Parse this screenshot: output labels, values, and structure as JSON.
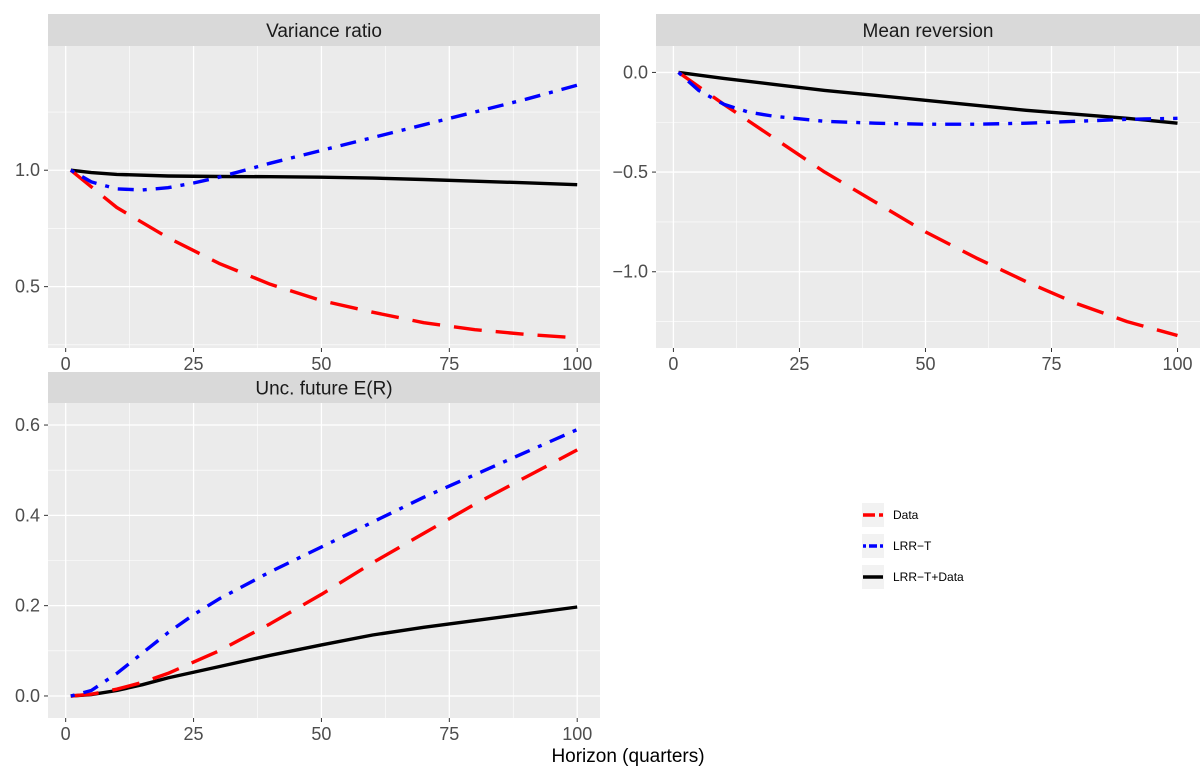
{
  "figure": {
    "xlabel": "Horizon (quarters)"
  },
  "legend": {
    "position": "right",
    "entries": [
      {
        "label": "Data",
        "color": "#ff0000",
        "linetype": "longdash"
      },
      {
        "label": "LRR−T",
        "color": "#0000ff",
        "linetype": "dotdash"
      },
      {
        "label": "LRR−T+Data",
        "color": "#000000",
        "linetype": "solid"
      }
    ]
  },
  "chart_data": [
    {
      "type": "line",
      "title": "Variance ratio",
      "xlim": [
        1,
        100
      ],
      "ylim": [
        0.29,
        1.48
      ],
      "x_ticks": [
        0,
        25,
        50,
        75,
        100
      ],
      "x_tick_labels": [
        "0",
        "25",
        "50",
        "75",
        "100"
      ],
      "y_ticks": [
        0.5,
        1.0
      ],
      "y_tick_labels": [
        "0.5",
        "1.0"
      ],
      "grid": true,
      "series": [
        {
          "name": "Data",
          "color": "#ff0000",
          "linetype": "longdash",
          "x": [
            1,
            10,
            20,
            30,
            40,
            50,
            60,
            70,
            80,
            90,
            100
          ],
          "y": [
            1.0,
            0.84,
            0.71,
            0.6,
            0.51,
            0.44,
            0.39,
            0.345,
            0.315,
            0.295,
            0.28
          ]
        },
        {
          "name": "LRR−T",
          "color": "#0000ff",
          "linetype": "dotdash",
          "x": [
            1,
            5,
            10,
            15,
            20,
            25,
            30,
            40,
            50,
            60,
            70,
            80,
            90,
            100
          ],
          "y": [
            1.0,
            0.95,
            0.92,
            0.915,
            0.925,
            0.945,
            0.97,
            1.03,
            1.085,
            1.14,
            1.195,
            1.25,
            1.305,
            1.365
          ]
        },
        {
          "name": "LRR−T+Data",
          "color": "#000000",
          "linetype": "solid",
          "x": [
            1,
            5,
            10,
            20,
            30,
            40,
            50,
            60,
            70,
            80,
            90,
            100
          ],
          "y": [
            1.0,
            0.99,
            0.982,
            0.975,
            0.973,
            0.972,
            0.97,
            0.966,
            0.96,
            0.953,
            0.946,
            0.938
          ]
        }
      ]
    },
    {
      "type": "line",
      "title": "Mean reversion",
      "xlim": [
        1,
        100
      ],
      "ylim": [
        -1.32,
        0.07
      ],
      "x_ticks": [
        0,
        25,
        50,
        75,
        100
      ],
      "x_tick_labels": [
        "0",
        "25",
        "50",
        "75",
        "100"
      ],
      "y_ticks": [
        -1.0,
        -0.5,
        0.0
      ],
      "y_tick_labels": [
        "−1.0",
        "−0.5",
        "0.0"
      ],
      "grid": true,
      "series": [
        {
          "name": "Data",
          "color": "#ff0000",
          "linetype": "longdash",
          "x": [
            1,
            10,
            20,
            30,
            40,
            50,
            60,
            70,
            80,
            90,
            100
          ],
          "y": [
            0.0,
            -0.16,
            -0.33,
            -0.5,
            -0.65,
            -0.8,
            -0.93,
            -1.05,
            -1.16,
            -1.25,
            -1.32
          ]
        },
        {
          "name": "LRR−T",
          "color": "#0000ff",
          "linetype": "dotdash",
          "x": [
            1,
            5,
            10,
            15,
            20,
            30,
            40,
            50,
            60,
            70,
            80,
            90,
            100
          ],
          "y": [
            0.0,
            -0.09,
            -0.16,
            -0.2,
            -0.22,
            -0.245,
            -0.255,
            -0.26,
            -0.26,
            -0.255,
            -0.245,
            -0.235,
            -0.23
          ]
        },
        {
          "name": "LRR−T+Data",
          "color": "#000000",
          "linetype": "solid",
          "x": [
            1,
            10,
            20,
            30,
            40,
            50,
            60,
            70,
            80,
            90,
            100
          ],
          "y": [
            0.0,
            -0.03,
            -0.06,
            -0.09,
            -0.115,
            -0.14,
            -0.165,
            -0.19,
            -0.21,
            -0.23,
            -0.255
          ]
        }
      ]
    },
    {
      "type": "line",
      "title": "Unc. future E(R)",
      "xlim": [
        1,
        100
      ],
      "ylim": [
        -0.02,
        0.62
      ],
      "x_ticks": [
        0,
        25,
        50,
        75,
        100
      ],
      "x_tick_labels": [
        "0",
        "25",
        "50",
        "75",
        "100"
      ],
      "y_ticks": [
        0.0,
        0.2,
        0.4,
        0.6
      ],
      "y_tick_labels": [
        "0.0",
        "0.2",
        "0.4",
        "0.6"
      ],
      "grid": true,
      "series": [
        {
          "name": "Data",
          "color": "#ff0000",
          "linetype": "longdash",
          "x": [
            1,
            5,
            10,
            15,
            20,
            30,
            40,
            50,
            60,
            70,
            80,
            90,
            100
          ],
          "y": [
            0.0,
            0.004,
            0.015,
            0.03,
            0.05,
            0.1,
            0.16,
            0.225,
            0.295,
            0.36,
            0.425,
            0.485,
            0.545
          ]
        },
        {
          "name": "LRR−T",
          "color": "#0000ff",
          "linetype": "dotdash",
          "x": [
            1,
            5,
            10,
            15,
            20,
            25,
            30,
            40,
            50,
            60,
            70,
            80,
            90,
            100
          ],
          "y": [
            0.0,
            0.012,
            0.05,
            0.095,
            0.14,
            0.18,
            0.215,
            0.275,
            0.33,
            0.385,
            0.44,
            0.49,
            0.54,
            0.59
          ]
        },
        {
          "name": "LRR−T+Data",
          "color": "#000000",
          "linetype": "solid",
          "x": [
            1,
            5,
            10,
            15,
            20,
            30,
            40,
            50,
            60,
            70,
            80,
            90,
            100
          ],
          "y": [
            0.0,
            0.003,
            0.012,
            0.025,
            0.04,
            0.065,
            0.09,
            0.113,
            0.135,
            0.152,
            0.167,
            0.182,
            0.197
          ]
        }
      ]
    }
  ]
}
